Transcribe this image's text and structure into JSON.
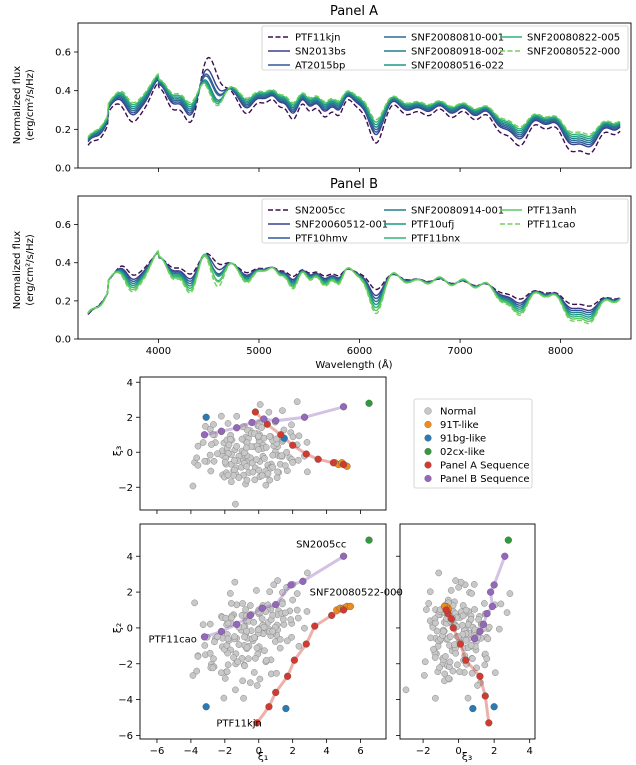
{
  "figure_colors": {
    "normal": "#c8c8c8",
    "t91": "#f08a1c",
    "bg91": "#2a7ab5",
    "cx02": "#2f9a3a",
    "panelA": "#d33a2f",
    "panelB": "#9467bd"
  },
  "chart_data": [
    {
      "id": "panelA",
      "type": "line",
      "title": "Panel A",
      "xlabel": "",
      "ylabel_line1": "Normalized flux",
      "ylabel_line2": "(erg/cm²/s/Hz)",
      "xlim": [
        3200,
        8700
      ],
      "ylim": [
        0.0,
        0.75
      ],
      "yticks": [
        "0.0",
        "0.2",
        "0.4",
        "0.6"
      ],
      "ytick_values": [
        0.0,
        0.2,
        0.4,
        0.6
      ],
      "xtick_values": [
        4000,
        5000,
        6000,
        7000,
        8000
      ],
      "series": [
        {
          "name": "PTF11kjn",
          "color": "#3b0f4f",
          "dash": true,
          "depth": 1.25,
          "bump": 0.1,
          "offset": -0.02
        },
        {
          "name": "SN2013bs",
          "color": "#3b3f8a",
          "dash": false,
          "depth": 1.1,
          "bump": 0.05,
          "offset": 0.0
        },
        {
          "name": "AT2015bp",
          "color": "#31599a",
          "dash": false,
          "depth": 1.05,
          "bump": 0.03,
          "offset": 0.005
        },
        {
          "name": "SNF20080810-001",
          "color": "#2d6c93",
          "dash": false,
          "depth": 1.0,
          "bump": 0.02,
          "offset": 0.01
        },
        {
          "name": "SNF20080918-002",
          "color": "#237e8d",
          "dash": false,
          "depth": 0.95,
          "bump": 0.0,
          "offset": 0.015
        },
        {
          "name": "SNF20080516-022",
          "color": "#1f9a86",
          "dash": false,
          "depth": 0.9,
          "bump": -0.01,
          "offset": 0.02
        },
        {
          "name": "SNF20080822-005",
          "color": "#2fb57a",
          "dash": false,
          "depth": 0.85,
          "bump": -0.02,
          "offset": 0.025
        },
        {
          "name": "SNF20080522-000",
          "color": "#73d05a",
          "dash": true,
          "depth": 0.8,
          "bump": -0.03,
          "offset": 0.03
        }
      ]
    },
    {
      "id": "panelB",
      "type": "line",
      "title": "Panel B",
      "xlabel": "Wavelength (Å)",
      "ylabel_line1": "Normalized flux",
      "ylabel_line2": "(erg/cm²/s/Hz)",
      "xlim": [
        3200,
        8700
      ],
      "ylim": [
        0.0,
        0.75
      ],
      "yticks": [
        "0.0",
        "0.2",
        "0.4",
        "0.6"
      ],
      "ytick_values": [
        0.0,
        0.2,
        0.4,
        0.6
      ],
      "xticks": [
        "4000",
        "5000",
        "6000",
        "7000",
        "8000"
      ],
      "xtick_values": [
        4000,
        5000,
        6000,
        7000,
        8000
      ],
      "series": [
        {
          "name": "SN2005cc",
          "color": "#3b0f4f",
          "dash": true,
          "depth": 0.55,
          "bump": 0.02,
          "offset": 0.0
        },
        {
          "name": "SNF20060512-001",
          "color": "#3b3f8a",
          "dash": false,
          "depth": 0.75,
          "bump": 0.01,
          "offset": 0.0
        },
        {
          "name": "PTF10hmv",
          "color": "#31599a",
          "dash": false,
          "depth": 0.85,
          "bump": 0.0,
          "offset": 0.0
        },
        {
          "name": "SNF20080914-001",
          "color": "#237e8d",
          "dash": false,
          "depth": 0.95,
          "bump": 0.0,
          "offset": 0.0
        },
        {
          "name": "PTF10ufj",
          "color": "#1f9a86",
          "dash": false,
          "depth": 1.05,
          "bump": 0.0,
          "offset": 0.0
        },
        {
          "name": "PTF11bnx",
          "color": "#2fb57a",
          "dash": false,
          "depth": 1.15,
          "bump": -0.01,
          "offset": 0.0
        },
        {
          "name": "PTF13anh",
          "color": "#5cc863",
          "dash": false,
          "depth": 1.25,
          "bump": -0.01,
          "offset": 0.0
        },
        {
          "name": "PTF11cao",
          "color": "#73d05a",
          "dash": true,
          "depth": 1.35,
          "bump": -0.02,
          "offset": 0.0
        }
      ]
    },
    {
      "id": "scatter_xi1_xi3",
      "type": "scatter",
      "xlabel": "",
      "ylabel": "ξ₃",
      "xlim": [
        -7,
        7.5
      ],
      "ylim": [
        -3.3,
        4.3
      ],
      "yticks": [
        "−2",
        "0",
        "2",
        "4"
      ],
      "ytick_values": [
        -2,
        0,
        2,
        4
      ],
      "xtick_values": [
        -6,
        -4,
        -2,
        0,
        2,
        4,
        6
      ],
      "groups": {
        "t91": [
          [
            4.5,
            -0.6
          ],
          [
            4.7,
            -0.7
          ],
          [
            4.9,
            -0.6
          ],
          [
            5.0,
            -0.7
          ],
          [
            5.2,
            -0.8
          ]
        ],
        "bg91": [
          [
            -3.1,
            2.0
          ],
          [
            1.5,
            0.8
          ]
        ],
        "cx02": [
          [
            6.5,
            2.8
          ]
        ],
        "panelA": [
          [
            -0.2,
            2.3
          ],
          [
            0.5,
            1.6
          ],
          [
            1.3,
            1.0
          ],
          [
            2.0,
            0.4
          ],
          [
            2.8,
            -0.1
          ],
          [
            3.5,
            -0.4
          ],
          [
            4.4,
            -0.6
          ],
          [
            5.0,
            -0.7
          ]
        ],
        "panelB": [
          [
            -3.2,
            1.0
          ],
          [
            -2.2,
            1.2
          ],
          [
            -1.3,
            1.4
          ],
          [
            -0.4,
            1.7
          ],
          [
            0.3,
            1.9
          ],
          [
            1.0,
            1.8
          ],
          [
            2.7,
            2.0
          ],
          [
            5.0,
            2.6
          ]
        ]
      }
    },
    {
      "id": "scatter_xi1_xi2",
      "type": "scatter",
      "xlabel": "ξ₁",
      "ylabel": "ξ₂",
      "xlim": [
        -7,
        7.5
      ],
      "ylim": [
        -6.2,
        5.8
      ],
      "yticks": [
        "−6",
        "−4",
        "−2",
        "0",
        "2",
        "4"
      ],
      "ytick_values": [
        -6,
        -4,
        -2,
        0,
        2,
        4
      ],
      "xticks": [
        "−6",
        "−4",
        "−2",
        "0",
        "2",
        "4",
        "6"
      ],
      "xtick_values": [
        -6,
        -4,
        -2,
        0,
        2,
        4,
        6
      ],
      "groups": {
        "t91": [
          [
            4.6,
            1.0
          ],
          [
            4.8,
            1.1
          ],
          [
            5.0,
            1.1
          ],
          [
            5.2,
            1.2
          ],
          [
            5.4,
            1.2
          ]
        ],
        "bg91": [
          [
            -3.1,
            -4.4
          ],
          [
            1.6,
            -4.5
          ]
        ],
        "cx02": [
          [
            6.5,
            4.9
          ]
        ],
        "panelA": [
          [
            -0.1,
            -5.3
          ],
          [
            0.6,
            -4.4
          ],
          [
            1.0,
            -3.6
          ],
          [
            1.7,
            -2.7
          ],
          [
            2.1,
            -1.8
          ],
          [
            2.8,
            -0.9
          ],
          [
            3.3,
            0.1
          ],
          [
            4.3,
            0.7
          ],
          [
            5.0,
            1.0
          ]
        ],
        "panelB": [
          [
            -3.2,
            -0.5
          ],
          [
            -2.2,
            -0.2
          ],
          [
            -1.3,
            0.2
          ],
          [
            -0.5,
            0.7
          ],
          [
            0.2,
            1.1
          ],
          [
            1.0,
            1.3
          ],
          [
            1.9,
            2.4
          ],
          [
            2.6,
            2.6
          ],
          [
            5.0,
            4.0
          ]
        ]
      },
      "annotations": [
        {
          "text": "SN2005cc",
          "x": 2.2,
          "y": 4.5
        },
        {
          "text": "SNF20080522-000",
          "x": 3.0,
          "y": 1.8
        },
        {
          "text": "PTF11cao",
          "x": -6.5,
          "y": -0.8
        },
        {
          "text": "PTF11kjn",
          "x": -2.5,
          "y": -5.5
        }
      ]
    },
    {
      "id": "scatter_xi3_xi2",
      "type": "scatter",
      "xlabel": "ξ₃",
      "ylabel": "",
      "xlim": [
        -3.3,
        4.3
      ],
      "ylim": [
        -6.2,
        5.8
      ],
      "xticks": [
        "−2",
        "0",
        "2",
        "4"
      ],
      "xtick_values": [
        -2,
        0,
        2,
        4
      ],
      "ytick_values": [
        -6,
        -4,
        -2,
        0,
        2,
        4
      ],
      "groups": {
        "t91": [
          [
            -0.6,
            1.0
          ],
          [
            -0.7,
            1.1
          ],
          [
            -0.6,
            1.1
          ],
          [
            -0.7,
            1.2
          ],
          [
            -0.8,
            1.2
          ]
        ],
        "bg91": [
          [
            2.0,
            -4.4
          ],
          [
            0.8,
            -4.5
          ]
        ],
        "cx02": [
          [
            2.8,
            4.9
          ]
        ],
        "panelA": [
          [
            1.7,
            -5.3
          ],
          [
            1.5,
            -3.8
          ],
          [
            1.2,
            -2.7
          ],
          [
            0.4,
            -1.8
          ],
          [
            0.1,
            -0.9
          ],
          [
            -0.3,
            0.0
          ],
          [
            -0.4,
            0.5
          ],
          [
            -0.6,
            0.8
          ],
          [
            -0.7,
            1.0
          ]
        ],
        "panelB": [
          [
            0.9,
            -0.6
          ],
          [
            1.2,
            -0.2
          ],
          [
            1.4,
            0.2
          ],
          [
            1.6,
            0.8
          ],
          [
            1.9,
            1.2
          ],
          [
            1.8,
            2.0
          ],
          [
            2.0,
            2.4
          ],
          [
            2.6,
            4.0
          ]
        ]
      }
    }
  ],
  "scatter_legend": [
    {
      "key": "normal",
      "label": "Normal"
    },
    {
      "key": "t91",
      "label": "91T-like"
    },
    {
      "key": "bg91",
      "label": "91bg-like"
    },
    {
      "key": "cx02",
      "label": "02cx-like"
    },
    {
      "key": "panelA",
      "label": "Panel A Sequence"
    },
    {
      "key": "panelB",
      "label": "Panel B Sequence"
    }
  ]
}
